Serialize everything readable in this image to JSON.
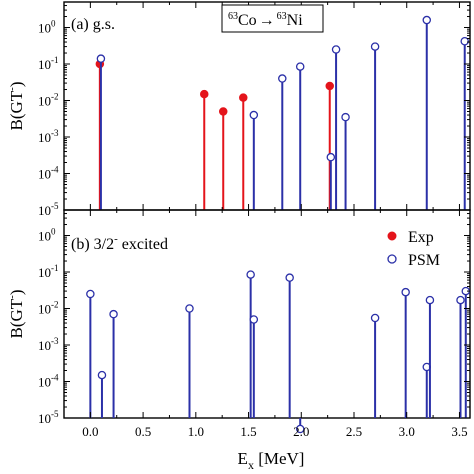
{
  "chart_data": [
    {
      "type": "stem",
      "panel_label": "(a) g.s.",
      "title": {
        "mass": "63",
        "from": "Co",
        "arrow": "→",
        "to": "Ni"
      },
      "ylabel": "B(GT",
      "ylabel_sup": "-",
      "ylabel_close": ")",
      "yscale": "log",
      "ylim": [
        1e-05,
        5
      ],
      "xlim": [
        -0.25,
        3.6
      ],
      "series": [
        {
          "name": "Exp",
          "marker": "filled-circle",
          "color": "#e4141b",
          "x": [
            0.09,
            1.08,
            1.26,
            1.45,
            2.27
          ],
          "y": [
            0.1,
            0.015,
            0.005,
            0.012,
            0.025
          ]
        },
        {
          "name": "PSM",
          "marker": "open-circle",
          "color": "#2b30a8",
          "x": [
            0.1,
            1.55,
            1.82,
            1.99,
            2.28,
            2.33,
            2.42,
            2.7,
            3.19,
            3.55
          ],
          "y": [
            0.14,
            0.004,
            0.04,
            0.085,
            0.00028,
            0.25,
            0.0035,
            0.3,
            1.6,
            0.42
          ]
        }
      ]
    },
    {
      "type": "stem",
      "panel_label": "(b) 3/2",
      "panel_label_sup": "-",
      "panel_label_rest": " excited",
      "ylabel": "B(GT",
      "ylabel_sup": "-",
      "ylabel_close": ")",
      "yscale": "log",
      "ylim": [
        1e-05,
        5
      ],
      "xlim": [
        -0.25,
        3.6
      ],
      "xlabel": "E",
      "xlabel_sub": "x",
      "xlabel_rest": " [MeV]",
      "xticks": [
        "0.0",
        "0.5",
        "1.0",
        "1.5",
        "2.0",
        "2.5",
        "3.0",
        "3.5"
      ],
      "yticks": [
        "10",
        "10",
        "10",
        "10",
        "10",
        "10"
      ],
      "ytick_exponents": [
        "0",
        "-1",
        "-2",
        "-3",
        "-4",
        "-5"
      ],
      "legend": {
        "position": "top-right",
        "entries": [
          "Exp",
          "PSM"
        ]
      },
      "series": [
        {
          "name": "PSM",
          "marker": "open-circle",
          "color": "#2b30a8",
          "x": [
            0.0,
            0.11,
            0.22,
            0.94,
            1.52,
            1.55,
            1.89,
            1.99,
            2.7,
            2.99,
            3.19,
            3.22,
            3.51,
            3.56
          ],
          "y": [
            0.025,
            0.00015,
            0.007,
            0.01,
            0.085,
            0.005,
            0.07,
            5e-06,
            0.0055,
            0.028,
            0.00025,
            0.017,
            0.017,
            0.03
          ]
        }
      ]
    }
  ]
}
